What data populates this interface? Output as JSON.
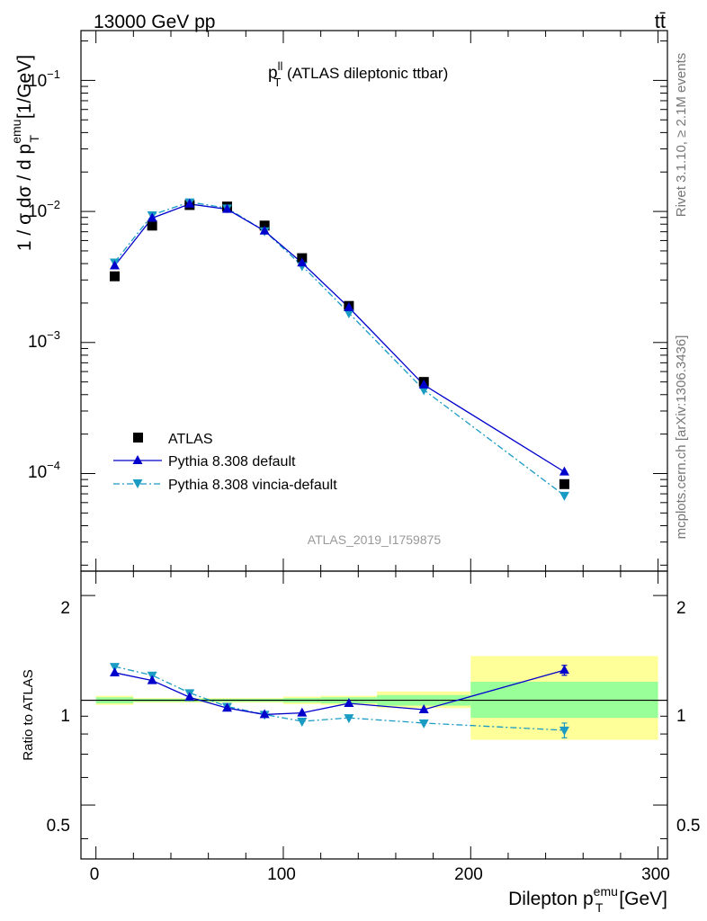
{
  "header": {
    "left": "13000 GeV pp",
    "right": "tt̄"
  },
  "main_plot": {
    "title_main": "p",
    "title_sup": "ll",
    "title_sub": "T",
    "title_rest": " (ATLAS dileptonic ttbar)",
    "watermark": "ATLAS_2019_I1759875",
    "ylabel_text": "1 / σ  dσ / d p",
    "ylabel_sup": "emu",
    "ylabel_sub": "T",
    "ylabel_unit": " [1/GeV]",
    "ytick_labels": [
      {
        "base": "10",
        "exp": "−1"
      },
      {
        "base": "10",
        "exp": "−2"
      },
      {
        "base": "10",
        "exp": "−3"
      },
      {
        "base": "10",
        "exp": "−4"
      }
    ]
  },
  "ratio_plot": {
    "ylabel": "Ratio to ATLAS",
    "ytick_labels": [
      "2",
      "1",
      "0.5"
    ]
  },
  "xaxis": {
    "label_main": "Dilepton p",
    "label_sup": "emu",
    "label_sub": "T",
    "label_unit": " [GeV]",
    "tick_labels": [
      "0",
      "100",
      "200",
      "300"
    ]
  },
  "side_text": {
    "rivet": "Rivet 3.1.10, ≥ 2.1M events",
    "mcplots": "mcplots.cern.ch [arXiv:1306.3436]"
  },
  "legend": {
    "entries": [
      "ATLAS",
      "Pythia 8.308 default",
      "Pythia 8.308 vincia-default"
    ]
  },
  "colors": {
    "atlas": "#000000",
    "default": "#0000cc",
    "vincia": "#1a9bc4",
    "band_inner": "#99ff99",
    "band_outer": "#ffff99"
  },
  "chart_data": {
    "type": "line",
    "x_unit": "GeV",
    "xlim": [
      -8,
      305
    ],
    "main_ylim": [
      1.8e-05,
      0.24
    ],
    "main_yscale": "log",
    "ratio_ylim": [
      0.35,
      2.35
    ],
    "ratio_yscale": "log",
    "bins": [
      [
        0,
        20
      ],
      [
        20,
        40
      ],
      [
        40,
        60
      ],
      [
        60,
        80
      ],
      [
        80,
        100
      ],
      [
        100,
        120
      ],
      [
        120,
        150
      ],
      [
        150,
        200
      ],
      [
        200,
        300
      ]
    ],
    "x": [
      10,
      30,
      50,
      70,
      90,
      110,
      135,
      175,
      250
    ],
    "series": [
      {
        "name": "ATLAS",
        "values": [
          0.0032,
          0.0078,
          0.0112,
          0.0109,
          0.0078,
          0.0044,
          0.0019,
          0.0005,
          8.3e-05
        ]
      },
      {
        "name": "Pythia 8.308 default",
        "values": [
          0.00385,
          0.0089,
          0.0114,
          0.0104,
          0.0071,
          0.00405,
          0.00185,
          0.000475,
          0.000103
        ]
      },
      {
        "name": "Pythia 8.308 vincia-default",
        "values": [
          0.0041,
          0.0094,
          0.0118,
          0.0106,
          0.0071,
          0.00385,
          0.00168,
          0.000435,
          6.8e-05
        ]
      }
    ],
    "ratio_series": [
      {
        "name": "Pythia 8.308 default",
        "values": [
          1.2,
          1.14,
          1.02,
          0.95,
          0.91,
          0.92,
          0.98,
          0.94,
          1.22
        ],
        "errors": [
          0.01,
          0.01,
          0.01,
          0.01,
          0.01,
          0.01,
          0.01,
          0.01,
          0.04
        ]
      },
      {
        "name": "Pythia 8.308 vincia-default",
        "values": [
          1.25,
          1.18,
          1.05,
          0.96,
          0.91,
          0.87,
          0.89,
          0.86,
          0.82
        ],
        "errors": [
          0.01,
          0.01,
          0.01,
          0.01,
          0.01,
          0.01,
          0.01,
          0.01,
          0.04
        ]
      }
    ],
    "ratio_band_inner": [
      [
        0.98,
        1.02
      ],
      [
        0.99,
        1.01
      ],
      [
        0.99,
        1.01
      ],
      [
        0.99,
        1.01
      ],
      [
        0.99,
        1.01
      ],
      [
        0.985,
        1.015
      ],
      [
        0.98,
        1.02
      ],
      [
        0.965,
        1.035
      ],
      [
        0.89,
        1.13
      ]
    ],
    "ratio_band_outer": [
      [
        0.97,
        1.03
      ],
      [
        0.985,
        1.015
      ],
      [
        0.985,
        1.015
      ],
      [
        0.985,
        1.015
      ],
      [
        0.985,
        1.015
      ],
      [
        0.975,
        1.025
      ],
      [
        0.97,
        1.03
      ],
      [
        0.95,
        1.06
      ],
      [
        0.77,
        1.34
      ]
    ],
    "legend_position": "lower-left",
    "grid": false
  }
}
